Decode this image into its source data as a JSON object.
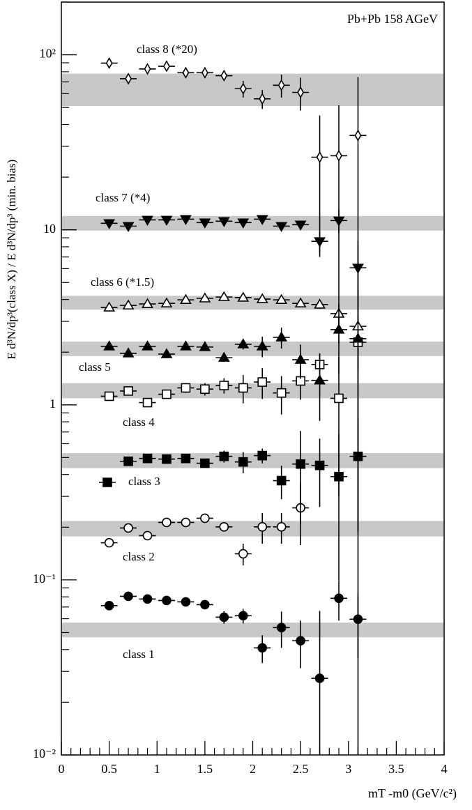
{
  "chart_data": {
    "type": "scatter",
    "annotation": "Pb+Pb 158 AGeV",
    "x_label": "mT -m0  (GeV/c²)",
    "y_label": "E d³N/dp³(class X) / E d³N/dp³ (min. bias)",
    "log_y": true,
    "xlim": [
      0,
      4
    ],
    "xticks": [
      0,
      0.5,
      1,
      1.5,
      2,
      2.5,
      3,
      3.5,
      4
    ],
    "xminorticks": [
      0.1,
      0.2,
      0.3,
      0.4,
      0.6,
      0.7,
      0.8,
      0.9,
      1.1,
      1.2,
      1.3,
      1.4,
      1.6,
      1.7,
      1.8,
      1.9,
      2.1,
      2.2,
      2.3,
      2.4,
      2.6,
      2.7,
      2.8,
      2.9,
      3.1,
      3.2,
      3.3,
      3.4,
      3.6,
      3.7,
      3.8,
      3.9
    ],
    "ylim": [
      0.01,
      200
    ],
    "yticks": [
      {
        "value": 0.01,
        "label": "10⁻²"
      },
      {
        "value": 0.1,
        "label": "10⁻¹"
      },
      1,
      10,
      {
        "value": 100,
        "label": "10²"
      }
    ],
    "yminorticks": [
      0.02,
      0.03,
      0.04,
      0.05,
      0.06,
      0.07,
      0.08,
      0.09,
      0.2,
      0.3,
      0.4,
      0.5,
      0.6,
      0.7,
      0.8,
      0.9,
      2,
      3,
      4,
      5,
      6,
      7,
      8,
      9,
      20,
      30,
      40,
      50,
      60,
      70,
      80,
      90,
      200
    ],
    "band_color": "#c8c8c8",
    "x": [
      0.5,
      0.7,
      0.9,
      1.1,
      1.3,
      1.5,
      1.7,
      1.9,
      2.1,
      2.3,
      2.5,
      2.7,
      2.9,
      3.1
    ],
    "series": [
      {
        "name": "class 1",
        "marker": "circle",
        "color": "#000000",
        "band": [
          0.047,
          0.057
        ],
        "values": [
          0.0713,
          0.0806,
          0.0778,
          0.0763,
          0.0749,
          0.0722,
          0.0612,
          0.0624,
          0.0409,
          0.0534,
          0.0449,
          0.0274,
          0.0785,
          0.0596
        ],
        "errors": [
          0.002,
          0.002,
          0.002,
          0.002,
          0.002,
          0.002,
          0.005,
          0.006,
          0.0074,
          0.0125,
          0.0136,
          0.039,
          0.02,
          0.024
        ]
      },
      {
        "name": "class 2",
        "marker": "circle-open",
        "color": "#000000",
        "band": [
          0.177,
          0.217
        ],
        "values": [
          0.163,
          0.198,
          0.179,
          0.213,
          0.213,
          0.225,
          0.201,
          0.141,
          0.201,
          0.201,
          0.258,
          null,
          null,
          null
        ],
        "errors": [
          0.008,
          0.008,
          0.008,
          0.008,
          0.008,
          0.008,
          0.012,
          0.02,
          0.04,
          0.04,
          0.1,
          null,
          null,
          null
        ]
      },
      {
        "name": "class 3",
        "marker": "square",
        "color": "#000000",
        "band": [
          0.435,
          0.53
        ],
        "values": [
          null,
          0.476,
          0.494,
          0.49,
          0.494,
          0.464,
          0.508,
          0.472,
          0.513,
          0.369,
          0.459,
          0.451,
          0.389,
          0.508
        ],
        "errors": [
          null,
          0.02,
          0.02,
          0.02,
          0.02,
          0.02,
          0.04,
          0.065,
          0.05,
          0.08,
          0.25,
          0.19,
          0.29,
          0.32
        ]
      },
      {
        "name": "class 4",
        "marker": "square-open",
        "color": "#000000",
        "band": [
          1.09,
          1.33
        ],
        "values": [
          1.12,
          1.2,
          1.03,
          1.15,
          1.25,
          1.23,
          1.29,
          1.25,
          1.35,
          1.17,
          1.37,
          1.7,
          1.09,
          2.28
        ],
        "errors": [
          0.05,
          0.05,
          0.04,
          0.05,
          0.08,
          0.1,
          0.13,
          0.23,
          0.27,
          0.29,
          0.3,
          0.27,
          0.79,
          0.74
        ]
      },
      {
        "name": "class 5",
        "marker": "triangle-up",
        "color": "#000000",
        "band": [
          1.9,
          2.3
        ],
        "values": [
          2.16,
          1.97,
          2.16,
          1.95,
          2.16,
          2.14,
          1.86,
          2.22,
          2.16,
          2.43,
          1.81,
          1.38,
          2.69,
          2.39
        ],
        "errors": [
          0.1,
          0.1,
          0.1,
          0.1,
          0.1,
          0.1,
          0.1,
          0.15,
          0.29,
          0.33,
          0.4,
          0.57,
          0.45,
          2.2
        ]
      },
      {
        "name": "class 6 (*1.5)",
        "marker": "triangle-up-open",
        "color": "#000000",
        "band": [
          3.5,
          4.2
        ],
        "values": [
          3.6,
          3.7,
          3.77,
          3.8,
          3.98,
          4.06,
          4.13,
          4.1,
          4.02,
          3.98,
          3.8,
          3.74,
          3.32,
          2.81
        ],
        "errors": [
          0.15,
          0.15,
          0.15,
          0.15,
          0.15,
          0.15,
          0.15,
          0.15,
          0.15,
          0.15,
          0.15,
          0.2,
          0.45,
          0.45
        ]
      },
      {
        "name": "class 7 (*4)",
        "marker": "triangle-down",
        "color": "#000000",
        "band": [
          9.9,
          12
        ],
        "values": [
          10.9,
          10.5,
          11.4,
          11.4,
          11.5,
          11.0,
          11.2,
          11.0,
          11.5,
          10.5,
          10.7,
          8.6,
          11.3,
          6.07
        ],
        "errors": [
          0.3,
          0.3,
          0.3,
          0.3,
          0.3,
          0.3,
          0.3,
          0.3,
          0.3,
          0.3,
          0.3,
          1.1,
          1.7,
          2.6
        ]
      },
      {
        "name": "class 8 (*20)",
        "marker": "diamond-open",
        "color": "#000000",
        "band": [
          51,
          78
        ],
        "values": [
          89.6,
          73,
          83,
          86,
          79,
          79,
          76,
          64,
          56,
          67,
          61,
          26,
          26.5,
          34.6
        ],
        "errors": [
          3,
          3,
          3,
          3,
          3,
          3,
          3,
          7,
          7,
          10,
          13,
          19,
          25,
          40
        ]
      }
    ]
  }
}
